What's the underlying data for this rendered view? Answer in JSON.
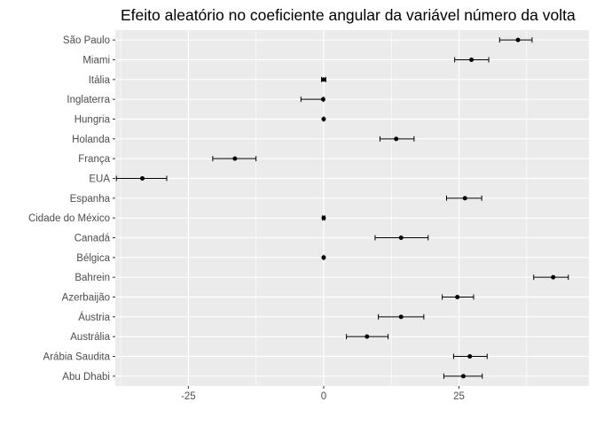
{
  "chart_data": {
    "type": "scatter",
    "title": "Efeito aleatório no coeficiente angular da variável número da volta",
    "xlabel": "",
    "ylabel": "",
    "xlim": [
      -38.5,
      49
    ],
    "x_ticks": [
      -25,
      0,
      25
    ],
    "x_tick_labels": [
      "-25",
      "0",
      "25"
    ],
    "grid": true,
    "categories": [
      "São Paulo",
      "Miami",
      "Itália",
      "Inglaterra",
      "Hungria",
      "Holanda",
      "França",
      "EUA",
      "Espanha",
      "Cidade do México",
      "Canadá",
      "Bélgica",
      "Bahrein",
      "Azerbaijão",
      "Áustria",
      "Austrália",
      "Arábia Saudita",
      "Abu Dhabi"
    ],
    "points": [
      {
        "category": "São Paulo",
        "estimate": 35.9,
        "lower": 32.5,
        "upper": 38.5
      },
      {
        "category": "Miami",
        "estimate": 27.3,
        "lower": 24.2,
        "upper": 30.5
      },
      {
        "category": "Itália",
        "estimate": 0.0,
        "lower": -0.4,
        "upper": 0.4
      },
      {
        "category": "Inglaterra",
        "estimate": -0.1,
        "lower": -4.2,
        "upper": 0.0
      },
      {
        "category": "Hungria",
        "estimate": 0.0,
        "lower": 0.0,
        "upper": 0.0
      },
      {
        "category": "Holanda",
        "estimate": 13.4,
        "lower": 10.4,
        "upper": 16.7
      },
      {
        "category": "França",
        "estimate": -16.4,
        "lower": -20.5,
        "upper": -12.5
      },
      {
        "category": "EUA",
        "estimate": -33.5,
        "lower": -38.3,
        "upper": -29.0
      },
      {
        "category": "Espanha",
        "estimate": 26.1,
        "lower": 22.7,
        "upper": 29.2
      },
      {
        "category": "Cidade do México",
        "estimate": 0.0,
        "lower": -0.2,
        "upper": 0.2
      },
      {
        "category": "Canadá",
        "estimate": 14.3,
        "lower": 9.5,
        "upper": 19.3
      },
      {
        "category": "Bélgica",
        "estimate": 0.0,
        "lower": 0.0,
        "upper": 0.0
      },
      {
        "category": "Bahrein",
        "estimate": 42.4,
        "lower": 38.8,
        "upper": 45.2
      },
      {
        "category": "Azerbaijão",
        "estimate": 24.7,
        "lower": 21.9,
        "upper": 27.7
      },
      {
        "category": "Áustria",
        "estimate": 14.3,
        "lower": 10.1,
        "upper": 18.5
      },
      {
        "category": "Austrália",
        "estimate": 8.0,
        "lower": 4.2,
        "upper": 11.9
      },
      {
        "category": "Arábia Saudita",
        "estimate": 27.0,
        "lower": 24.0,
        "upper": 30.2
      },
      {
        "category": "Abu Dhabi",
        "estimate": 25.8,
        "lower": 22.2,
        "upper": 29.3
      }
    ]
  }
}
